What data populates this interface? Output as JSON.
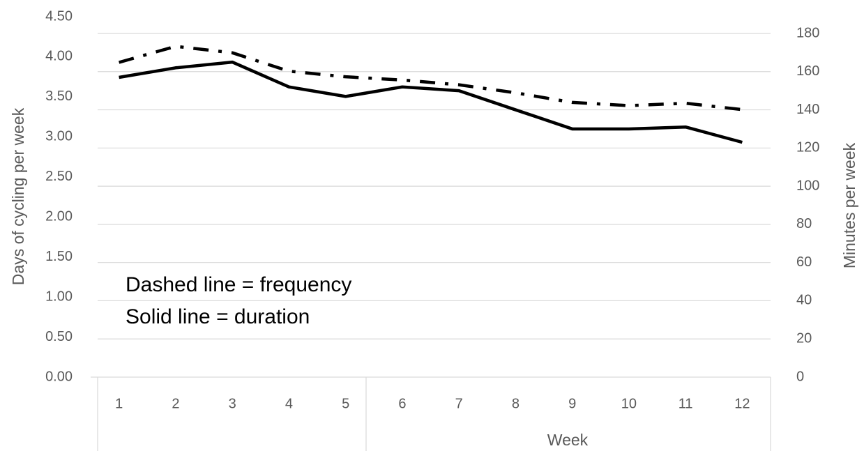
{
  "chart_data": {
    "type": "line",
    "x_label": "Week",
    "y_label": "Days of cycling per week",
    "y2_label": "Minutes per week",
    "annotations": [
      "Dashed line = frequency",
      "Solid line = duration"
    ],
    "categories": [
      "1",
      "2",
      "3",
      "4",
      "5",
      "6",
      "7",
      "8",
      "9",
      "10",
      "11",
      "12"
    ],
    "series": [
      {
        "name": "frequency",
        "color": "#000000",
        "dash": true,
        "values": [
          3.93,
          4.13,
          4.05,
          3.82,
          3.75,
          3.71,
          3.65,
          3.55,
          3.43,
          3.39,
          3.42,
          3.34
        ]
      },
      {
        "name": "duration",
        "color": "#000000",
        "dash": false,
        "axis": "y2",
        "values": [
          157,
          162,
          165,
          152,
          147,
          152,
          150,
          140,
          130,
          130,
          131,
          123
        ]
      }
    ],
    "ylim": [
      0,
      4.5
    ],
    "yticks": [
      {
        "value": 0,
        "label": "0.00"
      },
      {
        "value": 0.5,
        "label": "0.50"
      },
      {
        "value": 1,
        "label": "1.00"
      },
      {
        "value": 1.5,
        "label": "1.50"
      },
      {
        "value": 2,
        "label": "2.00"
      },
      {
        "value": 2.5,
        "label": "2.50"
      },
      {
        "value": 3,
        "label": "3.00"
      },
      {
        "value": 3.5,
        "label": "3.50"
      },
      {
        "value": 4,
        "label": "4.00"
      },
      {
        "value": 4.5,
        "label": "4.50"
      }
    ],
    "y2lim": [
      0,
      180
    ],
    "y2ticks": [
      0,
      20,
      40,
      60,
      80,
      100,
      120,
      140,
      160,
      180
    ],
    "grid": true
  }
}
